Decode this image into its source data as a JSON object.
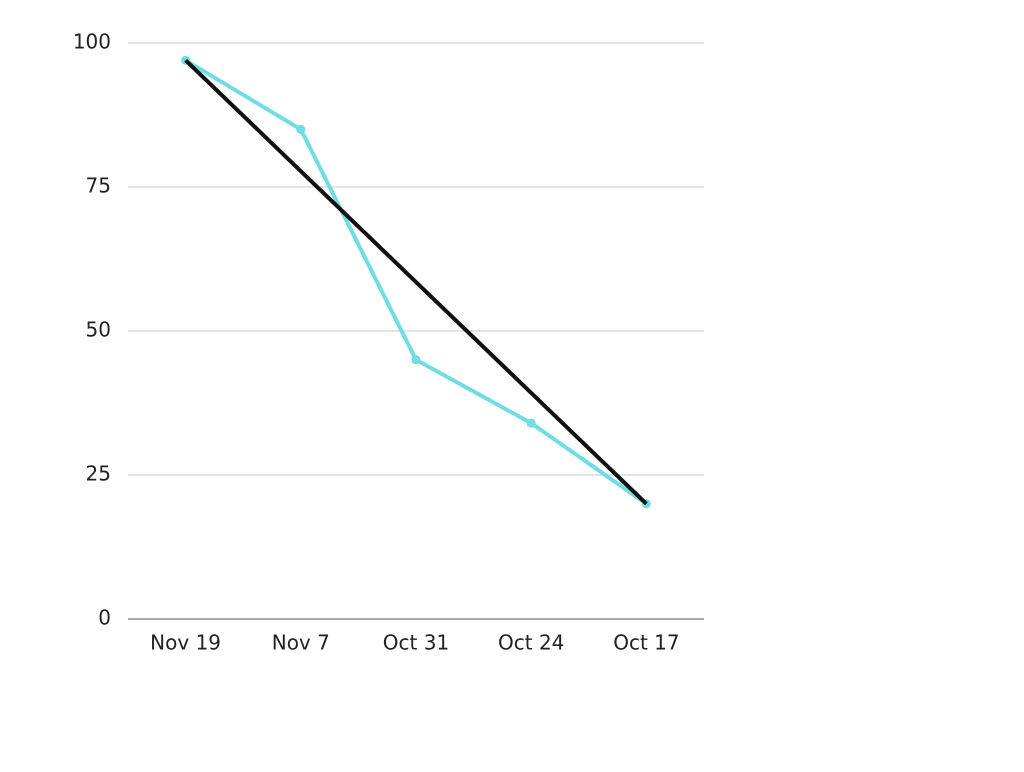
{
  "chart_data": {
    "type": "line",
    "categories": [
      "Nov 19",
      "Nov 7",
      "Oct 31",
      "Oct 24",
      "Oct 17"
    ],
    "series": [
      {
        "color": "#6fdde3",
        "values": [
          97,
          85,
          45,
          34,
          20
        ],
        "markers": true
      },
      {
        "color": "#111111",
        "values": [
          97,
          77.75,
          58.5,
          39.25,
          20
        ],
        "markers": false
      }
    ],
    "ylim": [
      0,
      100
    ],
    "yticks": [
      0,
      25,
      50,
      75,
      100
    ],
    "grid": true
  }
}
